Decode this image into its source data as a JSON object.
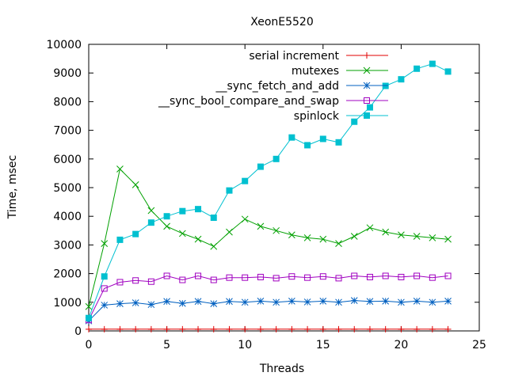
{
  "chart_data": {
    "type": "line",
    "title": "XeonE5520",
    "xlabel": "Threads",
    "ylabel": "Time, msec",
    "xlim": [
      0,
      25
    ],
    "ylim": [
      0,
      10000
    ],
    "xticks": [
      0,
      5,
      10,
      15,
      20,
      25
    ],
    "yticks": [
      0,
      1000,
      2000,
      3000,
      4000,
      5000,
      6000,
      7000,
      8000,
      9000,
      10000
    ],
    "grid": false,
    "legend_position": "top-right",
    "x": [
      0,
      1,
      2,
      3,
      4,
      5,
      6,
      7,
      8,
      9,
      10,
      11,
      12,
      13,
      14,
      15,
      16,
      17,
      18,
      19,
      20,
      21,
      22,
      23
    ],
    "series": [
      {
        "name": "serial increment",
        "color": "#e00000",
        "marker": "plus",
        "values": [
          60,
          60,
          60,
          60,
          60,
          60,
          60,
          60,
          60,
          60,
          60,
          60,
          60,
          60,
          60,
          60,
          60,
          60,
          60,
          60,
          60,
          60,
          60,
          60
        ]
      },
      {
        "name": "mutexes",
        "color": "#00a000",
        "marker": "cross",
        "values": [
          850,
          3050,
          5650,
          5100,
          4200,
          3650,
          3400,
          3200,
          2950,
          3450,
          3900,
          3650,
          3500,
          3350,
          3250,
          3200,
          3050,
          3300,
          3600,
          3450,
          3350,
          3300,
          3250,
          3200
        ]
      },
      {
        "name": "__sync_fetch_and_add",
        "color": "#0060c0",
        "marker": "star",
        "values": [
          350,
          900,
          950,
          980,
          920,
          1030,
          960,
          1030,
          950,
          1030,
          1000,
          1040,
          1000,
          1040,
          1010,
          1040,
          1000,
          1060,
          1030,
          1040,
          1000,
          1040,
          1000,
          1040
        ]
      },
      {
        "name": "__sync_bool_compare_and_swap",
        "color": "#a000c0",
        "marker": "square-open",
        "values": [
          380,
          1480,
          1700,
          1760,
          1720,
          1920,
          1780,
          1920,
          1780,
          1860,
          1860,
          1880,
          1840,
          1900,
          1860,
          1900,
          1840,
          1920,
          1880,
          1920,
          1880,
          1920,
          1860,
          1920
        ]
      },
      {
        "name": "spinlock",
        "color": "#00c0d0",
        "marker": "square-filled",
        "values": [
          450,
          1900,
          3180,
          3380,
          3780,
          4000,
          4180,
          4250,
          3950,
          4900,
          5230,
          5730,
          6000,
          6750,
          6480,
          6700,
          6580,
          7300,
          7800,
          8550,
          8780,
          9150,
          9320,
          9050
        ]
      }
    ]
  }
}
